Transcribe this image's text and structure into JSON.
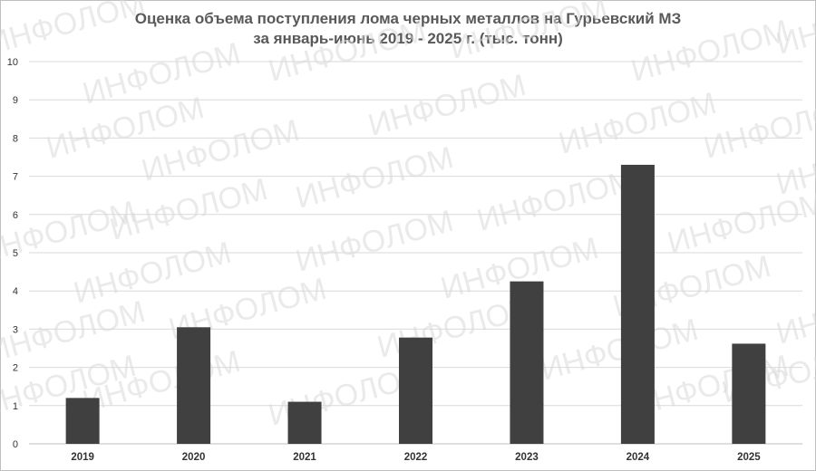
{
  "chart_data": {
    "type": "bar",
    "title_line1": "Оценка объема поступления лома черных металлов на Гурьевский МЗ",
    "title_line2": "за январь-июнь 2019 - 2025 г. (тыс. тонн)",
    "categories": [
      "2019",
      "2020",
      "2021",
      "2022",
      "2023",
      "2024",
      "2025"
    ],
    "values": [
      1.2,
      3.05,
      1.1,
      2.78,
      4.25,
      7.3,
      2.62
    ],
    "ylim": [
      0,
      10
    ],
    "yticks": [
      "0",
      "1",
      "2",
      "3",
      "4",
      "5",
      "6",
      "7",
      "8",
      "9",
      "10"
    ],
    "grid": true,
    "bar_color": "#404040"
  },
  "watermark": "ИНФОЛОМ"
}
